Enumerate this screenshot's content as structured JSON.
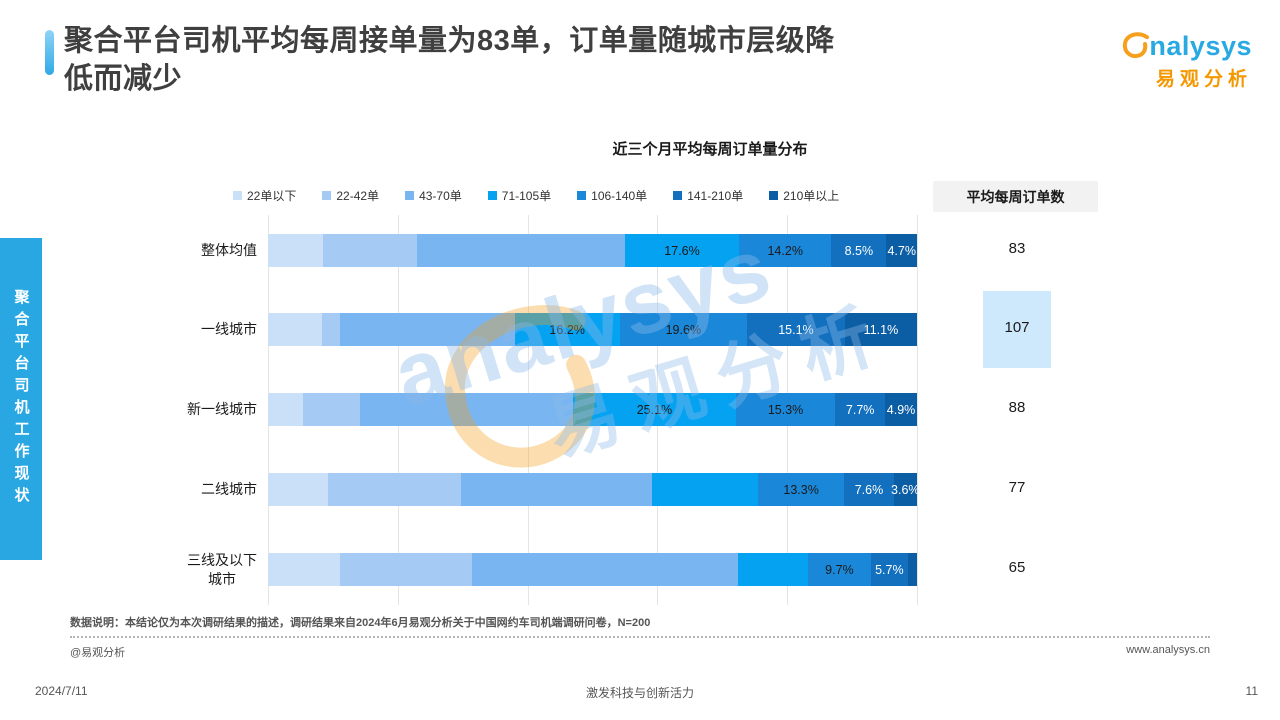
{
  "page": {
    "title": "聚合平台司机平均每周接单量为83单，订单量随城市层级降\n低而减少",
    "footnote": "数据说明：本结论仅为本次调研结果的描述，调研结果来自2024年6月易观分析关于中国网约车司机端调研问卷，N=200",
    "credit": "@易观分析",
    "website": "www.analysys.cn",
    "date": "2024/7/11",
    "slogan": "激发科技与创新活力",
    "page_number": "11"
  },
  "logo": {
    "brand": "nalysys",
    "brand_cn": "易观分析"
  },
  "sidebar": {
    "label": "聚合平台司机工作现状"
  },
  "watermark": {
    "brand": "analysys",
    "brand_cn": "易观分析"
  },
  "colors": {
    "accent": "#2fa9e8",
    "sidebar_tab": "#29a7e3",
    "logo_blue": "#29a9e2",
    "logo_orange": "#f39800",
    "highlight_box": "#cee9fb"
  },
  "chart_data": {
    "type": "bar",
    "stacked": true,
    "orientation": "horizontal",
    "title": "近三个月平均每周订单量分布",
    "right_column_header": "平均每周订单数",
    "xlabel": "",
    "ylabel": "",
    "xlim": [
      0,
      100
    ],
    "gridlines": [
      0,
      20,
      40,
      60,
      80,
      100
    ],
    "legend_position": "top",
    "categories": [
      "整体均值",
      "一线城市",
      "新一线城市",
      "二线城市",
      "三线及以下\n城市"
    ],
    "series": [
      {
        "name": "22单以下",
        "color": "#cadff8",
        "label_color": "#1a1a1a",
        "values": [
          8.5,
          8.3,
          5.4,
          9.2,
          11.1
        ],
        "labels": [
          null,
          null,
          null,
          null,
          null
        ]
      },
      {
        "name": "22-42单",
        "color": "#a5cbf4",
        "label_color": "#1a1a1a",
        "values": [
          14.5,
          2.8,
          8.8,
          20.6,
          20.3
        ],
        "labels": [
          null,
          null,
          null,
          null,
          null
        ]
      },
      {
        "name": "43-70单",
        "color": "#79b5f0",
        "label_color": "#1a1a1a",
        "values": [
          32.0,
          26.9,
          32.8,
          29.4,
          41.0
        ],
        "labels": [
          null,
          null,
          null,
          null,
          null
        ]
      },
      {
        "name": "71-105单",
        "color": "#05a2f2",
        "label_color": "#1a1a1a",
        "values": [
          17.6,
          16.2,
          25.1,
          16.3,
          10.8
        ],
        "labels": [
          "17.6%",
          "16.2%",
          "25.1%",
          null,
          null
        ]
      },
      {
        "name": "106-140单",
        "color": "#1a87d9",
        "label_color": "#1a1a1a",
        "values": [
          14.2,
          19.6,
          15.3,
          13.3,
          9.7
        ],
        "labels": [
          "14.2%",
          "19.6%",
          "15.3%",
          "13.3%",
          "9.7%"
        ]
      },
      {
        "name": "141-210单",
        "color": "#1270be",
        "label_color": "#ffffff",
        "values": [
          8.5,
          15.1,
          7.7,
          7.6,
          5.7
        ],
        "labels": [
          "8.5%",
          "15.1%",
          "7.7%",
          "7.6%",
          "5.7%"
        ]
      },
      {
        "name": "210单以上",
        "color": "#0c5ea4",
        "label_color": "#ffffff",
        "values": [
          4.7,
          11.1,
          4.9,
          3.6,
          1.4
        ],
        "labels": [
          "4.7%",
          "11.1%",
          "4.9%",
          "3.6%",
          null
        ]
      }
    ],
    "averages": [
      83,
      107,
      88,
      77,
      65
    ],
    "highlight_index": 1
  }
}
